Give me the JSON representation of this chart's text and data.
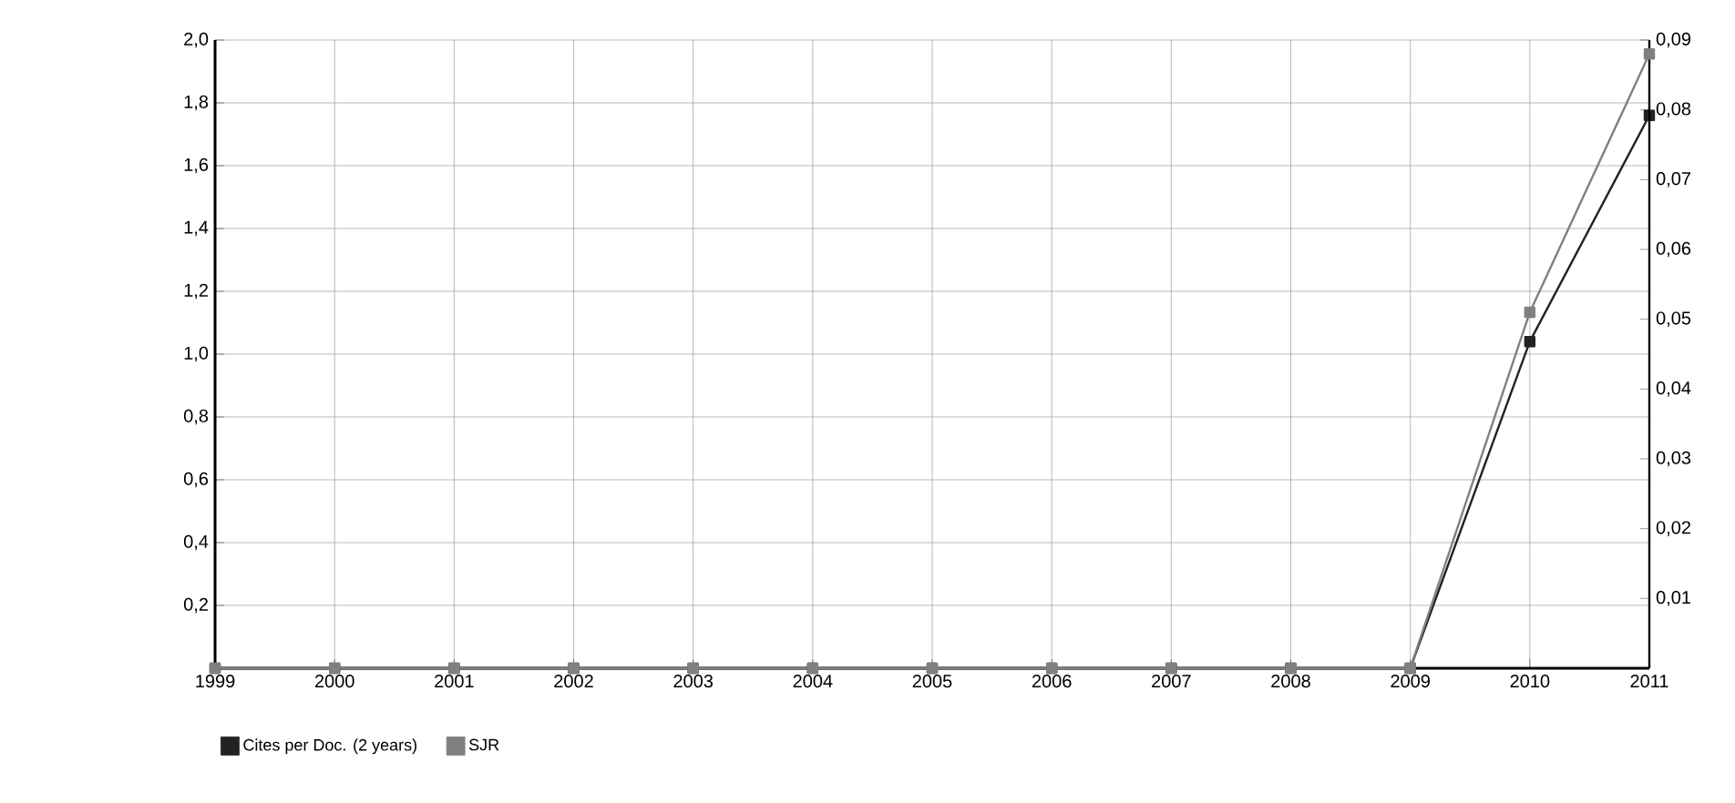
{
  "chart_data": {
    "type": "line",
    "categories": [
      "1999",
      "2000",
      "2001",
      "2002",
      "2003",
      "2004",
      "2005",
      "2006",
      "2007",
      "2008",
      "2009",
      "2010",
      "2011"
    ],
    "series": [
      {
        "name": "Cites per Doc. (2 years)",
        "color": "#222222",
        "axis": "y",
        "values": [
          0,
          0,
          0,
          0,
          0,
          0,
          0,
          0,
          0,
          0,
          0,
          1.04,
          1.76
        ]
      },
      {
        "name": "SJR",
        "color": "#808080",
        "axis": "y2",
        "values": [
          0,
          0,
          0,
          0,
          0,
          0,
          0,
          0,
          0,
          0,
          0,
          0.051,
          0.088
        ]
      }
    ],
    "ylim": [
      0,
      2.0
    ],
    "yticks": [
      {
        "value": 0.2,
        "label": "0,2"
      },
      {
        "value": 0.4,
        "label": "0,4"
      },
      {
        "value": 0.6,
        "label": "0,6"
      },
      {
        "value": 0.8,
        "label": "0,8"
      },
      {
        "value": 1.0,
        "label": "1,0"
      },
      {
        "value": 1.2,
        "label": "1,2"
      },
      {
        "value": 1.4,
        "label": "1,4"
      },
      {
        "value": 1.6,
        "label": "1,6"
      },
      {
        "value": 1.8,
        "label": "1,8"
      },
      {
        "value": 2.0,
        "label": "2,0"
      }
    ],
    "y2lim": [
      0,
      0.09
    ],
    "y2ticks": [
      {
        "value": 0.01,
        "label": "0,01"
      },
      {
        "value": 0.02,
        "label": "0,02"
      },
      {
        "value": 0.03,
        "label": "0,03"
      },
      {
        "value": 0.04,
        "label": "0,04"
      },
      {
        "value": 0.05,
        "label": "0,05"
      },
      {
        "value": 0.06,
        "label": "0,06"
      },
      {
        "value": 0.07,
        "label": "0,07"
      },
      {
        "value": 0.08,
        "label": "0,08"
      },
      {
        "value": 0.09,
        "label": "0,09"
      }
    ],
    "grid": true,
    "legend": "bottom",
    "marker": "square",
    "line_style": "solid"
  }
}
